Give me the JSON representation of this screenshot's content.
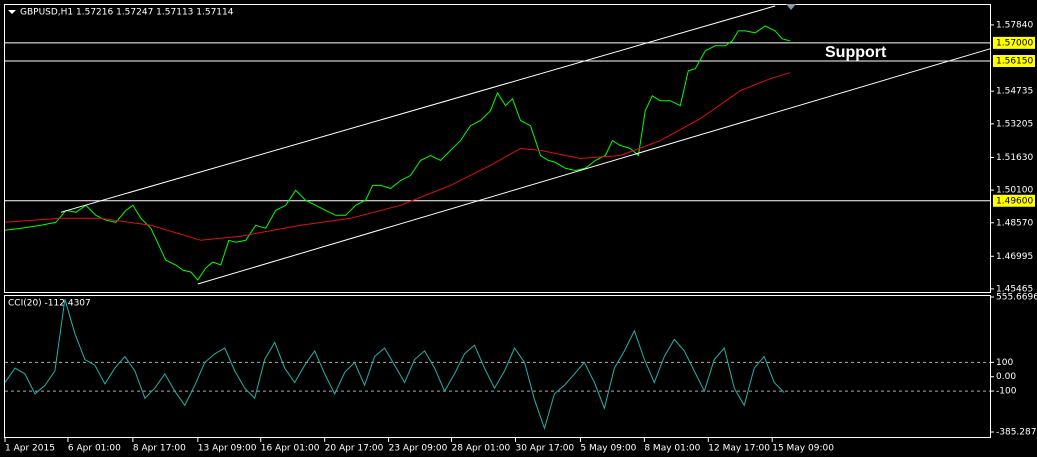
{
  "chart_data": [
    {
      "type": "line",
      "title": "GBPUSD,H1  1.57216 1.57247 1.57113 1.57114",
      "annotation": "Support",
      "xlim": [
        0,
        986
      ],
      "ylim": [
        1.45325,
        1.58774
      ],
      "yticks": [
        {
          "value": 1.4547,
          "label": "1.45465"
        },
        {
          "value": 1.47,
          "label": "1.46995"
        },
        {
          "value": 1.4857,
          "label": "1.48570"
        },
        {
          "value": 1.501,
          "label": "1.50100"
        },
        {
          "value": 1.5163,
          "label": "1.51630"
        },
        {
          "value": 1.53205,
          "label": "1.53205"
        },
        {
          "value": 1.54735,
          "label": "1.54735"
        },
        {
          "value": 1.5784,
          "label": "1.57840"
        }
      ],
      "levels": [
        {
          "value": 1.57,
          "label": "1.57000"
        },
        {
          "value": 1.5615,
          "label": "1.56150"
        },
        {
          "value": 1.496,
          "label": "1.49600"
        }
      ],
      "series": [
        {
          "color": "#00ff00",
          "x": [
            0,
            16,
            36,
            51,
            61,
            71,
            81,
            91,
            101,
            111,
            121,
            128,
            136,
            146,
            154,
            161,
            171,
            178,
            186,
            193,
            201,
            208,
            216,
            224,
            231,
            241,
            251,
            261,
            271,
            281,
            291,
            301,
            311,
            321,
            331,
            341,
            351,
            361,
            368,
            376,
            386,
            396,
            406,
            416,
            426,
            436,
            446,
            456,
            466,
            476,
            486,
            493,
            501,
            508,
            516,
            526,
            536,
            544,
            551,
            561,
            571,
            581,
            591,
            601,
            608,
            616,
            626,
            634,
            641,
            648,
            656,
            666,
            676,
            684,
            691,
            701,
            711,
            721,
            728,
            734,
            741,
            751,
            761,
            771,
            778,
            786
          ],
          "values": [
            1.4822,
            1.4831,
            1.4845,
            1.4859,
            1.4915,
            1.4906,
            1.4939,
            1.4892,
            1.4869,
            1.4859,
            1.4915,
            1.4939,
            1.4878,
            1.4831,
            1.4752,
            1.4682,
            1.4659,
            1.4635,
            1.4626,
            1.4589,
            1.4645,
            1.4673,
            1.4659,
            1.4775,
            1.4766,
            1.4775,
            1.4845,
            1.4831,
            1.4915,
            1.4939,
            1.5009,
            1.4962,
            1.4939,
            1.4915,
            1.4892,
            1.4892,
            1.4939,
            1.4962,
            1.5032,
            1.5032,
            1.5018,
            1.5055,
            1.5079,
            1.5149,
            1.5172,
            1.5149,
            1.5196,
            1.5242,
            1.5312,
            1.5336,
            1.5382,
            1.5466,
            1.5406,
            1.5438,
            1.5336,
            1.5312,
            1.5172,
            1.5149,
            1.514,
            1.5112,
            1.5102,
            1.5112,
            1.5149,
            1.5172,
            1.5242,
            1.5219,
            1.5205,
            1.5172,
            1.5382,
            1.5452,
            1.5429,
            1.5429,
            1.5406,
            1.5569,
            1.5579,
            1.5663,
            1.5686,
            1.5686,
            1.5709,
            1.5756,
            1.5756,
            1.5747,
            1.5779,
            1.5756,
            1.5719,
            1.5709
          ]
        },
        {
          "color": "#e01010",
          "x": [
            0,
            56,
            96,
            146,
            196,
            236,
            296,
            346,
            396,
            446,
            486,
            516,
            536,
            576,
            616,
            656,
            696,
            736,
            766,
            786
          ],
          "values": [
            1.4859,
            1.4878,
            1.4878,
            1.4845,
            1.4775,
            1.4794,
            1.4845,
            1.4878,
            1.4939,
            1.5032,
            1.5126,
            1.5205,
            1.5196,
            1.5158,
            1.5172,
            1.5242,
            1.5345,
            1.5476,
            1.5532,
            1.556
          ]
        },
        {
          "color": "#ffffff",
          "x": [
            56,
            771
          ],
          "values": [
            1.4906,
            1.5873
          ]
        },
        {
          "color": "#ffffff",
          "x": [
            193,
            986
          ],
          "values": [
            1.457,
            1.5672
          ]
        }
      ]
    },
    {
      "type": "line",
      "title": "CCI(20) -112.4307",
      "xlim": [
        0,
        986
      ],
      "ylim": [
        -385.2873,
        555.6696
      ],
      "xticks": [
        {
          "value": 0,
          "label": "1 Apr 2015"
        },
        {
          "value": 63,
          "label": "6 Apr 01:00"
        },
        {
          "value": 128,
          "label": "8 Apr 17:00"
        },
        {
          "value": 193,
          "label": "13 Apr 09:00"
        },
        {
          "value": 256,
          "label": "16 Apr 01:00"
        },
        {
          "value": 320,
          "label": "20 Apr 17:00"
        },
        {
          "value": 384,
          "label": "23 Apr 09:00"
        },
        {
          "value": 447,
          "label": "28 Apr 01:00"
        },
        {
          "value": 511,
          "label": "30 Apr 17:00"
        },
        {
          "value": 576,
          "label": "5 May 09:00"
        },
        {
          "value": 640,
          "label": "8 May 01:00"
        },
        {
          "value": 704,
          "label": "12 May 17:00"
        },
        {
          "value": 768,
          "label": "15 May 09:00"
        }
      ],
      "yticks": [
        555.6696,
        100,
        {
          "value": 0,
          "label": "0.00"
        },
        -100,
        -385.2873
      ],
      "levels": [
        100,
        -100
      ],
      "series": [
        {
          "color": "#20b2aa",
          "x": [
            0,
            10,
            20,
            30,
            40,
            50,
            60,
            70,
            80,
            90,
            100,
            110,
            120,
            130,
            140,
            150,
            160,
            170,
            180,
            190,
            200,
            210,
            220,
            230,
            240,
            250,
            260,
            270,
            280,
            290,
            300,
            310,
            320,
            330,
            340,
            350,
            360,
            370,
            380,
            390,
            400,
            410,
            420,
            430,
            440,
            450,
            460,
            470,
            480,
            490,
            500,
            510,
            520,
            530,
            540,
            550,
            560,
            570,
            580,
            590,
            600,
            610,
            620,
            630,
            640,
            650,
            660,
            670,
            680,
            690,
            700,
            710,
            720,
            730,
            740,
            750,
            760,
            770,
            780
          ],
          "values": [
            -40,
            60,
            20,
            -120,
            -60,
            40,
            540,
            300,
            120,
            80,
            -50,
            60,
            140,
            40,
            -150,
            -80,
            20,
            -100,
            -200,
            -60,
            100,
            160,
            200,
            40,
            -80,
            -150,
            120,
            240,
            60,
            -40,
            80,
            180,
            20,
            -120,
            30,
            100,
            -60,
            140,
            200,
            80,
            -40,
            120,
            180,
            60,
            -100,
            20,
            160,
            220,
            60,
            -80,
            40,
            200,
            100,
            -160,
            -360,
            -120,
            -60,
            20,
            100,
            -40,
            -220,
            60,
            180,
            320,
            120,
            -40,
            140,
            260,
            180,
            40,
            -100,
            120,
            200,
            -80,
            -200,
            60,
            140,
            -40,
            -110
          ]
        }
      ]
    }
  ]
}
